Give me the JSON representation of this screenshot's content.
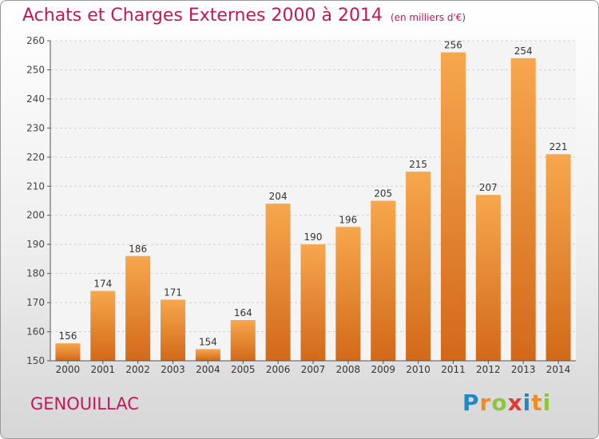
{
  "header": {
    "title": "Achats et Charges Externes 2000 à 2014",
    "subtitle": "(en milliers d'€)"
  },
  "footer": {
    "place": "GENOUILLAC",
    "logo_letters": [
      "P",
      "r",
      "o",
      "x",
      "i",
      "t",
      "i"
    ],
    "logo_colors": [
      "#1e88c8",
      "#f28c1e",
      "#8cc63f",
      "#e53935",
      "#1e88c8",
      "#f28c1e",
      "#8cc63f"
    ]
  },
  "chart_data": {
    "type": "bar",
    "title": "Achats et Charges Externes 2000 à 2014",
    "subtitle": "(en milliers d'€)",
    "categories": [
      "2000",
      "2001",
      "2002",
      "2003",
      "2004",
      "2005",
      "2006",
      "2007",
      "2008",
      "2009",
      "2010",
      "2011",
      "2012",
      "2013",
      "2014"
    ],
    "values": [
      156,
      174,
      186,
      171,
      154,
      164,
      204,
      190,
      196,
      205,
      215,
      256,
      207,
      254,
      221
    ],
    "ylim": [
      150,
      260
    ],
    "yticks": [
      150,
      160,
      170,
      180,
      190,
      200,
      210,
      220,
      230,
      240,
      250,
      260
    ],
    "grid": true,
    "bar_color_top": "#f7a74d",
    "bar_color_bottom": "#d2691a"
  }
}
